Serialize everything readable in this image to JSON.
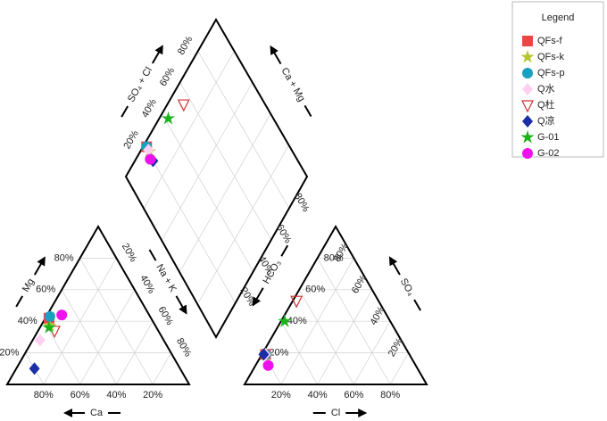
{
  "chart_data": {
    "type": "piper",
    "legend_title": "Legend",
    "ticks": [
      {
        "value": 20,
        "label": "20%"
      },
      {
        "value": 40,
        "label": "40%"
      },
      {
        "value": 60,
        "label": "60%"
      },
      {
        "value": 80,
        "label": "80%"
      }
    ],
    "axis_labels": {
      "mg": "Mg",
      "ca": "Ca",
      "nak": "Na + K",
      "hco3": "HCO₃",
      "cl": "Cl",
      "so4": "SO₄",
      "so4cl": "SO₄ + Cl",
      "camg": "Ca + Mg"
    },
    "series": [
      {
        "name": "QFs-f",
        "marker": "square",
        "color": "#ee4444",
        "cation": [
          56,
          42
        ],
        "anion": [
          2,
          19
        ]
      },
      {
        "name": "QFs-k",
        "marker": "star",
        "color": "#b5c42b",
        "cation": [
          58,
          37
        ],
        "anion": [
          2,
          19
        ]
      },
      {
        "name": "QFs-p",
        "marker": "circle",
        "color": "#1aa0c0",
        "cation": [
          55,
          43
        ],
        "anion": [
          2,
          19
        ]
      },
      {
        "name": "Q水",
        "marker": "diamond",
        "color": "#ffd0f0",
        "cation": [
          68,
          28
        ],
        "anion": [
          2,
          19
        ]
      },
      {
        "name": "Q杜",
        "marker": "triangle-open",
        "color": "#cc3333",
        "cation": [
          57,
          34
        ],
        "anion": [
          2,
          53
        ]
      },
      {
        "name": "Q凉",
        "marker": "diamond",
        "color": "#1a2ea8",
        "cation": [
          80,
          10
        ],
        "anion": [
          1,
          19
        ]
      },
      {
        "name": "G-01",
        "marker": "star",
        "color": "#1ab31a",
        "cation": [
          59,
          36
        ],
        "anion": [
          2,
          40
        ]
      },
      {
        "name": "G-02",
        "marker": "circle",
        "color": "#ee11ee",
        "cation": [
          48,
          44
        ],
        "anion": [
          7,
          12
        ]
      }
    ]
  }
}
